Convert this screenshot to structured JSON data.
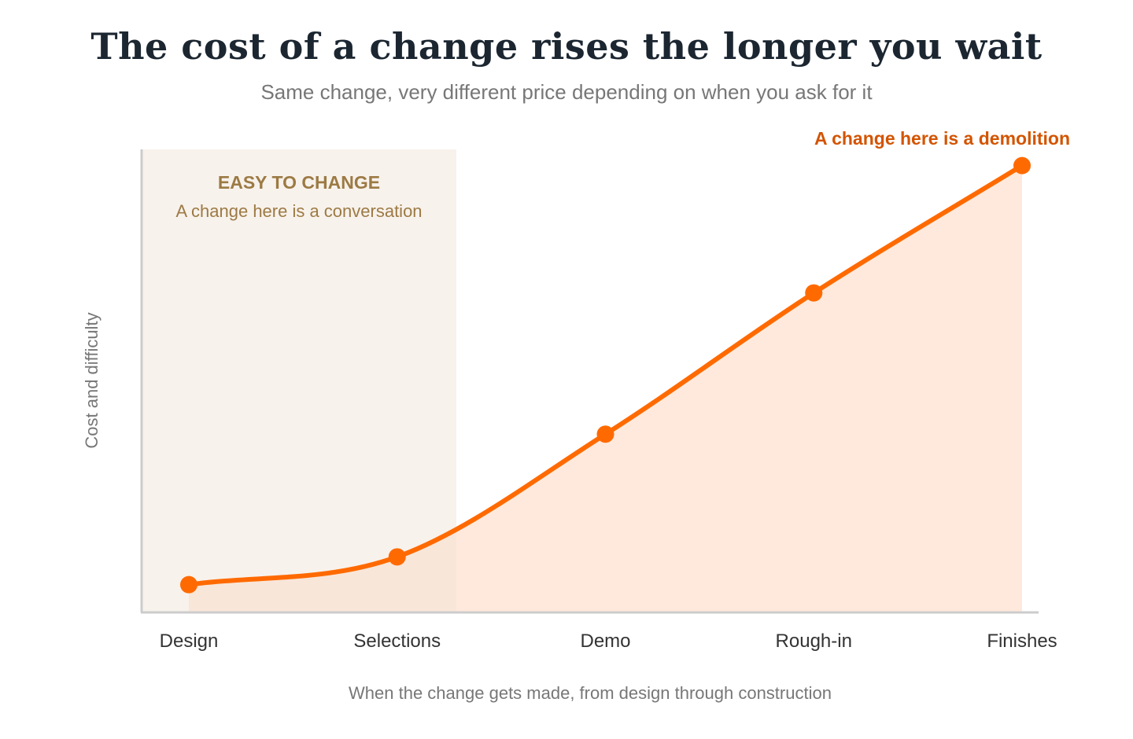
{
  "chart_data": {
    "type": "area",
    "title": "The cost of a change rises the longer you wait",
    "subtitle": "Same change, very different price depending on when you ask for it",
    "xlabel": "When the change gets made, from design through construction",
    "ylabel": "Cost and difficulty",
    "categories": [
      "Design",
      "Selections",
      "Demo",
      "Rough-in",
      "Finishes"
    ],
    "values": [
      6,
      12,
      38.5,
      69,
      96.5
    ],
    "ylim": [
      0,
      100
    ],
    "grid": false,
    "legend": "none",
    "highlight_zone": {
      "title": "EASY TO CHANGE",
      "subtitle": "A change here is a conversation"
    },
    "end_annotation": "A change here is a demolition",
    "colors": {
      "line": "#ff6a00",
      "area_fill": "#ffe9dc",
      "zone_fill": "#f8f2ec",
      "zone_text": "#9c7a44",
      "annotation": "#d35400",
      "axis": "#cccccc"
    }
  }
}
